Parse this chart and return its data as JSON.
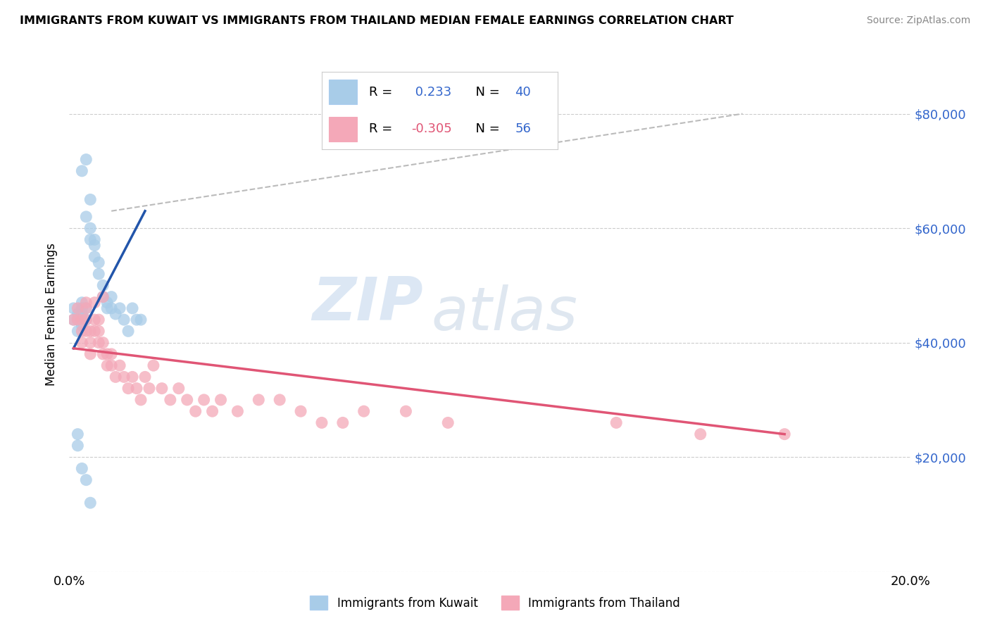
{
  "title": "IMMIGRANTS FROM KUWAIT VS IMMIGRANTS FROM THAILAND MEDIAN FEMALE EARNINGS CORRELATION CHART",
  "source": "Source: ZipAtlas.com",
  "ylabel": "Median Female Earnings",
  "xlim": [
    0.0,
    0.2
  ],
  "ylim": [
    0,
    90000
  ],
  "yticks": [
    0,
    20000,
    40000,
    60000,
    80000
  ],
  "ytick_labels": [
    "",
    "$20,000",
    "$40,000",
    "$60,000",
    "$80,000"
  ],
  "xticks": [
    0.0,
    0.05,
    0.1,
    0.15,
    0.2
  ],
  "xtick_labels": [
    "0.0%",
    "",
    "",
    "",
    "20.0%"
  ],
  "kuwait_color": "#a8cce8",
  "thailand_color": "#f4a8b8",
  "kuwait_line_color": "#2255aa",
  "thailand_line_color": "#e05575",
  "dashed_line_color": "#bbbbbb",
  "R_kuwait": 0.233,
  "N_kuwait": 40,
  "R_thailand": -0.305,
  "N_thailand": 56,
  "watermark_zip": "ZIP",
  "watermark_atlas": "atlas",
  "kuwait_scatter_x": [
    0.001,
    0.001,
    0.002,
    0.002,
    0.002,
    0.003,
    0.003,
    0.003,
    0.003,
    0.004,
    0.004,
    0.004,
    0.005,
    0.005,
    0.005,
    0.006,
    0.006,
    0.006,
    0.007,
    0.007,
    0.008,
    0.008,
    0.009,
    0.009,
    0.01,
    0.01,
    0.011,
    0.012,
    0.013,
    0.014,
    0.015,
    0.016,
    0.017,
    0.002,
    0.003,
    0.004,
    0.005,
    0.003,
    0.004,
    0.002
  ],
  "kuwait_scatter_y": [
    44000,
    46000,
    42000,
    44000,
    45000,
    43000,
    45000,
    46000,
    47000,
    44000,
    46000,
    62000,
    58000,
    60000,
    65000,
    55000,
    57000,
    58000,
    52000,
    54000,
    50000,
    48000,
    46000,
    47000,
    46000,
    48000,
    45000,
    46000,
    44000,
    42000,
    46000,
    44000,
    44000,
    22000,
    18000,
    16000,
    12000,
    70000,
    72000,
    24000
  ],
  "thailand_scatter_x": [
    0.001,
    0.002,
    0.002,
    0.003,
    0.003,
    0.003,
    0.004,
    0.004,
    0.004,
    0.005,
    0.005,
    0.005,
    0.006,
    0.006,
    0.007,
    0.007,
    0.007,
    0.008,
    0.008,
    0.009,
    0.009,
    0.01,
    0.01,
    0.011,
    0.012,
    0.013,
    0.014,
    0.015,
    0.016,
    0.017,
    0.018,
    0.019,
    0.02,
    0.022,
    0.024,
    0.026,
    0.028,
    0.03,
    0.032,
    0.034,
    0.036,
    0.04,
    0.045,
    0.05,
    0.055,
    0.06,
    0.065,
    0.07,
    0.08,
    0.09,
    0.004,
    0.006,
    0.008,
    0.13,
    0.15,
    0.17
  ],
  "thailand_scatter_y": [
    44000,
    46000,
    44000,
    42000,
    40000,
    44000,
    42000,
    44000,
    46000,
    40000,
    42000,
    38000,
    44000,
    42000,
    40000,
    42000,
    44000,
    38000,
    40000,
    36000,
    38000,
    36000,
    38000,
    34000,
    36000,
    34000,
    32000,
    34000,
    32000,
    30000,
    34000,
    32000,
    36000,
    32000,
    30000,
    32000,
    30000,
    28000,
    30000,
    28000,
    30000,
    28000,
    30000,
    30000,
    28000,
    26000,
    26000,
    28000,
    28000,
    26000,
    47000,
    47000,
    48000,
    26000,
    24000,
    24000
  ]
}
